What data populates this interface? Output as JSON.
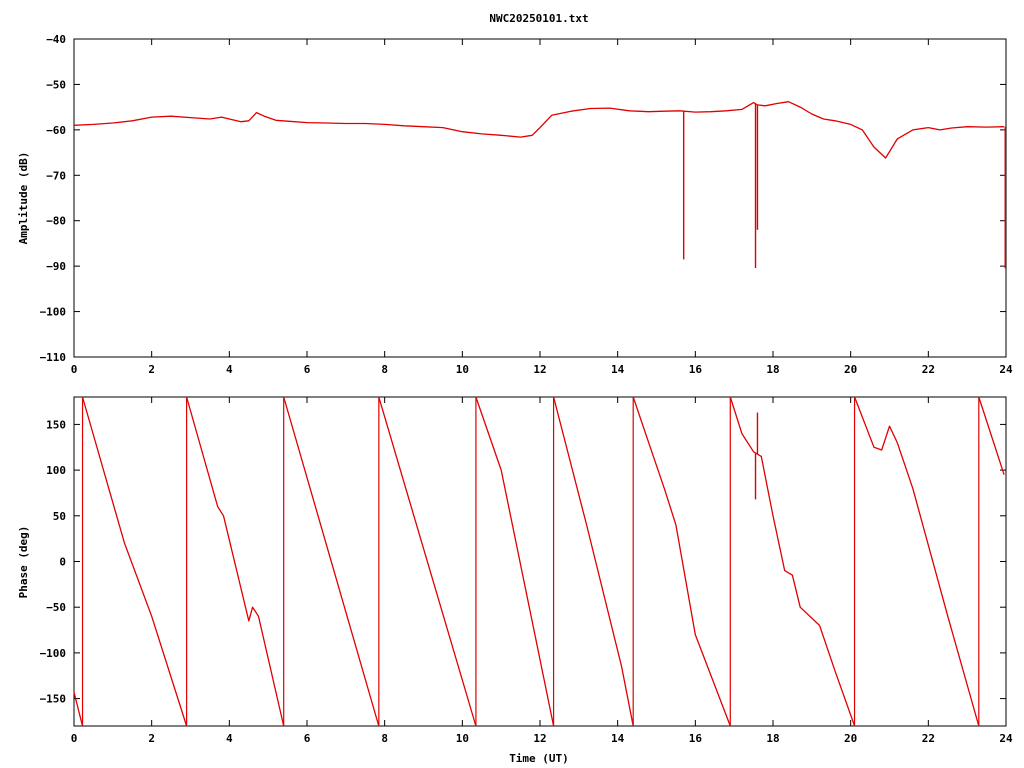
{
  "title": "NWC20250101.txt",
  "line_color": "#e00000",
  "chart_data": [
    {
      "id": "amplitude",
      "type": "line",
      "xlabel": "",
      "ylabel": "Amplitude (dB)",
      "xlim": [
        0,
        24
      ],
      "ylim": [
        -110,
        -40
      ],
      "xticks": [
        0,
        2,
        4,
        6,
        8,
        10,
        12,
        14,
        16,
        18,
        20,
        22,
        24
      ],
      "yticks": [
        -110,
        -100,
        -90,
        -80,
        -70,
        -60,
        -50,
        -40
      ],
      "series": [
        {
          "x": [
            0,
            0.5,
            1,
            1.5,
            2,
            2.5,
            3,
            3.5,
            3.8,
            4,
            4.3,
            4.5,
            4.7,
            4.9,
            5.2,
            5.5,
            6,
            6.5,
            7,
            7.5,
            8,
            8.5,
            9,
            9.5,
            10,
            10.5,
            11,
            11.5,
            11.8,
            12,
            12.3,
            12.8,
            13.3,
            13.8,
            14.3,
            14.8,
            15.2,
            15.6,
            16,
            16.4,
            16.8,
            17.2,
            17.5,
            17.6,
            17.8,
            18.1,
            18.4,
            18.7,
            19,
            19.3,
            19.6,
            20,
            20.3,
            20.6,
            20.9,
            21.2,
            21.6,
            22,
            22.3,
            22.6,
            23,
            23.5,
            23.95
          ],
          "y": [
            -59,
            -58.8,
            -58.5,
            -58,
            -57.2,
            -57,
            -57.3,
            -57.6,
            -57.2,
            -57.6,
            -58.2,
            -58,
            -56.2,
            -57,
            -57.9,
            -58.1,
            -58.4,
            -58.5,
            -58.6,
            -58.6,
            -58.8,
            -59.1,
            -59.3,
            -59.5,
            -60.4,
            -60.9,
            -61.2,
            -61.6,
            -61.2,
            -59.5,
            -56.8,
            -55.9,
            -55.3,
            -55.2,
            -55.8,
            -56,
            -55.9,
            -55.8,
            -56.1,
            -56,
            -55.8,
            -55.5,
            -54,
            -54.5,
            -54.7,
            -54.2,
            -53.8,
            -55,
            -56.5,
            -57.6,
            -58,
            -58.8,
            -60,
            -63.8,
            -66.2,
            -62,
            -60,
            -59.5,
            -60,
            -59.6,
            -59.3,
            -59.4,
            -59.3
          ]
        }
      ],
      "spikes": [
        {
          "x": 15.7,
          "y": -88.5
        },
        {
          "x": 17.55,
          "y": -90.4
        },
        {
          "x": 17.6,
          "y": -82
        },
        {
          "x": 23.98,
          "y": -90.5
        }
      ]
    },
    {
      "id": "phase",
      "type": "line",
      "xlabel": "Time (UT)",
      "ylabel": "Phase (deg)",
      "xlim": [
        0,
        24
      ],
      "ylim": [
        -180,
        180
      ],
      "xticks": [
        0,
        2,
        4,
        6,
        8,
        10,
        12,
        14,
        16,
        18,
        20,
        22,
        24
      ],
      "yticks": [
        -150,
        -100,
        -50,
        0,
        50,
        100,
        150
      ],
      "series": [
        {
          "x": [
            0,
            0.22
          ],
          "y": [
            -143,
            -180
          ]
        },
        {
          "x": [
            0.22,
            1.3,
            2,
            2.9
          ],
          "y": [
            180,
            20,
            -60,
            -180
          ]
        },
        {
          "x": [
            2.9,
            3.7,
            3.85,
            4.5,
            4.6,
            4.75,
            5.4
          ],
          "y": [
            180,
            60,
            50,
            -65,
            -50,
            -60,
            -180
          ]
        },
        {
          "x": [
            5.4,
            7.85
          ],
          "y": [
            180,
            -180
          ]
        },
        {
          "x": [
            7.85,
            10.35
          ],
          "y": [
            180,
            -180
          ]
        },
        {
          "x": [
            10.35,
            11,
            12.35
          ],
          "y": [
            180,
            100,
            -180
          ]
        },
        {
          "x": [
            12.35,
            13.2,
            14.1,
            14.4
          ],
          "y": [
            180,
            40,
            -115,
            -180
          ]
        },
        {
          "x": [
            14.4,
            14.8,
            15.2,
            15.5,
            16,
            16.9
          ],
          "y": [
            180,
            130,
            80,
            40,
            -80,
            -180
          ]
        },
        {
          "x": [
            16.9,
            17.2,
            17.5,
            17.7,
            18,
            18.3,
            18.5,
            18.7,
            19.2,
            19.6,
            20.1
          ],
          "y": [
            180,
            140,
            120,
            115,
            50,
            -10,
            -15,
            -50,
            -70,
            -120,
            -180
          ]
        },
        {
          "x": [
            20.1,
            20.6,
            20.8,
            21,
            21.2,
            21.6,
            22.5,
            23.3
          ],
          "y": [
            180,
            125,
            122,
            148,
            130,
            80,
            -60,
            -180
          ]
        },
        {
          "x": [
            23.3,
            23.95
          ],
          "y": [
            180,
            95
          ]
        }
      ],
      "spikes": [
        {
          "x": 17.55,
          "y": 68
        },
        {
          "x": 17.6,
          "y": 163
        }
      ]
    }
  ]
}
